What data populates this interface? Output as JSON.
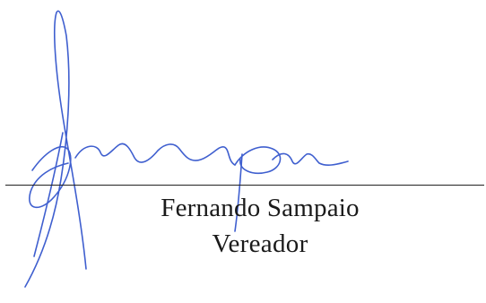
{
  "signature": {
    "name": "Fernando Sampaio",
    "title": "Vereador",
    "ink_color": "#3f5fcf",
    "line_color": "#222222"
  }
}
